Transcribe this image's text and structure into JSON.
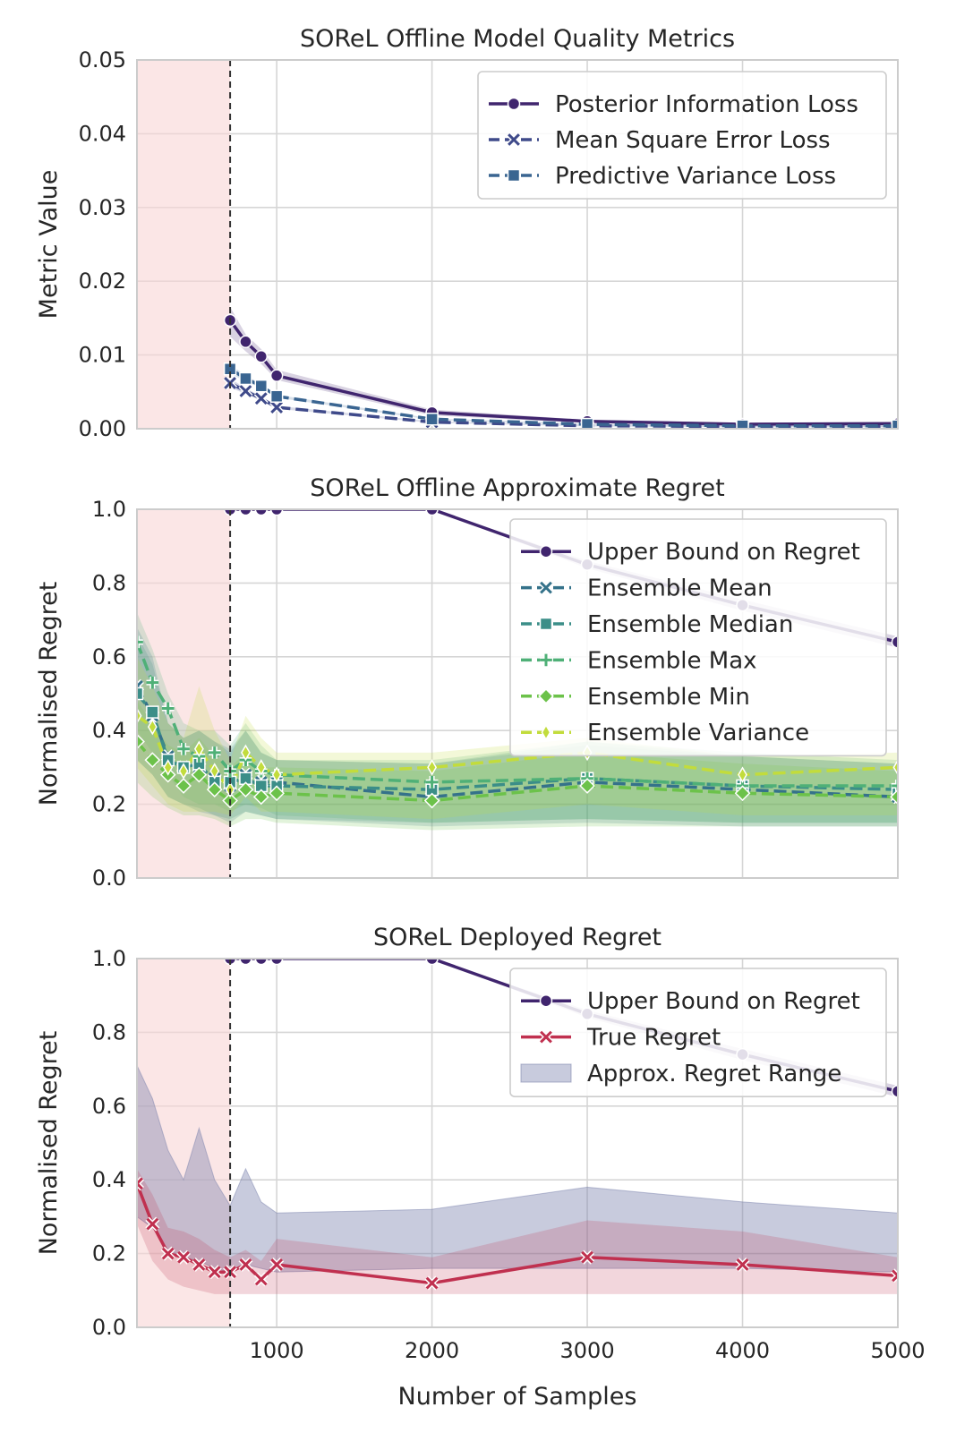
{
  "chart_data": [
    {
      "type": "line",
      "title": "SOReL Offline Model Quality Metrics",
      "xlabel": "",
      "ylabel": "Metric Value",
      "xlim": [
        100,
        5000
      ],
      "ylim": [
        0,
        0.05
      ],
      "yticks": [
        0.0,
        0.01,
        0.02,
        0.03,
        0.04,
        0.05
      ],
      "ytick_labels": [
        "0.00",
        "0.01",
        "0.02",
        "0.03",
        "0.04",
        "0.05"
      ],
      "xticks": [
        1000,
        2000,
        3000,
        4000,
        5000
      ],
      "xtick_labels": [],
      "shaded_region": [
        100,
        700
      ],
      "vline": 700,
      "legend_position": "top-right",
      "series": [
        {
          "name": "Posterior Information Loss",
          "color": "#40256e",
          "marker": "circle",
          "dash": "solid",
          "x": [
            700,
            800,
            900,
            1000,
            2000,
            3000,
            4000,
            5000
          ],
          "y": [
            0.0147,
            0.0118,
            0.0098,
            0.0072,
            0.0022,
            0.001,
            0.0006,
            0.0007
          ],
          "band_lo": [
            0.0125,
            0.0105,
            0.0088,
            0.0066,
            0.0018,
            0.0008,
            0.0005,
            0.0005
          ],
          "band_hi": [
            0.0165,
            0.0128,
            0.0108,
            0.008,
            0.0026,
            0.0012,
            0.0008,
            0.0009
          ]
        },
        {
          "name": "Mean Square Error Loss",
          "color": "#3f4a8a",
          "marker": "x",
          "dash": "dash",
          "x": [
            700,
            800,
            900,
            1000,
            2000,
            3000,
            4000,
            5000
          ],
          "y": [
            0.0062,
            0.0051,
            0.0041,
            0.0029,
            0.0009,
            0.0004,
            0.0003,
            0.0003
          ],
          "band_lo": [
            0.0056,
            0.0047,
            0.0038,
            0.0027,
            0.0008,
            0.0003,
            0.0002,
            0.0002
          ],
          "band_hi": [
            0.0068,
            0.0055,
            0.0044,
            0.0031,
            0.001,
            0.0005,
            0.0004,
            0.0004
          ]
        },
        {
          "name": "Predictive Variance Loss",
          "color": "#3a6591",
          "marker": "square",
          "dash": "dash",
          "x": [
            700,
            800,
            900,
            1000,
            2000,
            3000,
            4000,
            5000
          ],
          "y": [
            0.0081,
            0.0068,
            0.0058,
            0.0044,
            0.0013,
            0.0006,
            0.0004,
            0.0004
          ],
          "band_lo": [
            0.0075,
            0.0064,
            0.0055,
            0.0042,
            0.0012,
            0.0005,
            0.0003,
            0.0003
          ],
          "band_hi": [
            0.0087,
            0.0072,
            0.0061,
            0.0046,
            0.0014,
            0.0007,
            0.0005,
            0.0005
          ]
        }
      ]
    },
    {
      "type": "line",
      "title": "SOReL Offline Approximate Regret",
      "xlabel": "",
      "ylabel": "Normalised Regret",
      "xlim": [
        100,
        5000
      ],
      "ylim": [
        0,
        1
      ],
      "yticks": [
        0.0,
        0.2,
        0.4,
        0.6,
        0.8,
        1.0
      ],
      "ytick_labels": [
        "0.0",
        "0.2",
        "0.4",
        "0.6",
        "0.8",
        "1.0"
      ],
      "xticks": [
        1000,
        2000,
        3000,
        4000,
        5000
      ],
      "xtick_labels": [],
      "shaded_region": [
        100,
        700
      ],
      "vline": 700,
      "legend_position": "top-right",
      "series": [
        {
          "name": "Upper Bound on Regret",
          "color": "#40256e",
          "marker": "circle",
          "dash": "solid",
          "x": [
            700,
            800,
            900,
            1000,
            2000,
            3000,
            4000,
            5000
          ],
          "y": [
            1.0,
            1.0,
            1.0,
            1.0,
            1.0,
            0.85,
            0.74,
            0.64
          ],
          "band_lo": [
            1.0,
            1.0,
            1.0,
            1.0,
            1.0,
            0.84,
            0.725,
            0.625
          ],
          "band_hi": [
            1.0,
            1.0,
            1.0,
            1.0,
            1.0,
            0.86,
            0.755,
            0.655
          ]
        },
        {
          "name": "Ensemble Mean",
          "color": "#35728a",
          "marker": "x",
          "dash": "dash",
          "x": [
            100,
            200,
            300,
            400,
            500,
            600,
            700,
            800,
            900,
            1000,
            2000,
            3000,
            4000,
            5000
          ],
          "y": [
            0.52,
            0.44,
            0.33,
            0.3,
            0.3,
            0.27,
            0.25,
            0.28,
            0.26,
            0.26,
            0.22,
            0.26,
            0.24,
            0.22
          ],
          "band_lo": [
            0.32,
            0.28,
            0.22,
            0.2,
            0.18,
            0.17,
            0.15,
            0.18,
            0.17,
            0.16,
            0.14,
            0.15,
            0.14,
            0.14
          ],
          "band_hi": [
            0.68,
            0.6,
            0.42,
            0.38,
            0.4,
            0.37,
            0.34,
            0.4,
            0.34,
            0.32,
            0.31,
            0.36,
            0.33,
            0.31
          ]
        },
        {
          "name": "Ensemble Median",
          "color": "#3b8e88",
          "marker": "square",
          "dash": "dash",
          "x": [
            100,
            200,
            300,
            400,
            500,
            600,
            700,
            800,
            900,
            1000,
            2000,
            3000,
            4000,
            5000
          ],
          "y": [
            0.5,
            0.45,
            0.32,
            0.3,
            0.31,
            0.26,
            0.26,
            0.27,
            0.25,
            0.25,
            0.24,
            0.27,
            0.25,
            0.24
          ],
          "band_lo": [
            0.32,
            0.28,
            0.22,
            0.2,
            0.19,
            0.17,
            0.16,
            0.18,
            0.17,
            0.16,
            0.15,
            0.16,
            0.15,
            0.15
          ],
          "band_hi": [
            0.66,
            0.58,
            0.42,
            0.38,
            0.4,
            0.37,
            0.35,
            0.4,
            0.34,
            0.32,
            0.31,
            0.37,
            0.33,
            0.31
          ]
        },
        {
          "name": "Ensemble Max",
          "color": "#4fb077",
          "marker": "plus",
          "dash": "dash",
          "x": [
            100,
            200,
            300,
            400,
            500,
            600,
            700,
            800,
            900,
            1000,
            2000,
            3000,
            4000,
            5000
          ],
          "y": [
            0.64,
            0.53,
            0.46,
            0.35,
            0.33,
            0.34,
            0.29,
            0.32,
            0.29,
            0.28,
            0.26,
            0.27,
            0.25,
            0.25
          ],
          "band_lo": [
            0.4,
            0.34,
            0.28,
            0.22,
            0.2,
            0.2,
            0.18,
            0.2,
            0.19,
            0.17,
            0.15,
            0.16,
            0.15,
            0.15
          ],
          "band_hi": [
            0.72,
            0.62,
            0.5,
            0.42,
            0.4,
            0.4,
            0.36,
            0.42,
            0.36,
            0.32,
            0.32,
            0.37,
            0.34,
            0.32
          ]
        },
        {
          "name": "Ensemble Min",
          "color": "#6cc24a",
          "marker": "diamond",
          "dash": "dash",
          "x": [
            100,
            200,
            300,
            400,
            500,
            600,
            700,
            800,
            900,
            1000,
            2000,
            3000,
            4000,
            5000
          ],
          "y": [
            0.37,
            0.32,
            0.28,
            0.25,
            0.28,
            0.24,
            0.21,
            0.24,
            0.22,
            0.23,
            0.21,
            0.25,
            0.23,
            0.22
          ],
          "band_lo": [
            0.26,
            0.22,
            0.19,
            0.17,
            0.17,
            0.16,
            0.14,
            0.16,
            0.16,
            0.15,
            0.13,
            0.14,
            0.14,
            0.14
          ],
          "band_hi": [
            0.48,
            0.42,
            0.36,
            0.34,
            0.38,
            0.33,
            0.3,
            0.34,
            0.3,
            0.3,
            0.29,
            0.34,
            0.31,
            0.29
          ]
        },
        {
          "name": "Ensemble Variance",
          "color": "#c2dc3c",
          "marker": "thin_diamond",
          "dash": "dash",
          "x": [
            100,
            200,
            300,
            400,
            500,
            600,
            700,
            800,
            900,
            1000,
            2000,
            3000,
            4000,
            5000
          ],
          "y": [
            0.44,
            0.41,
            0.3,
            0.29,
            0.35,
            0.29,
            0.24,
            0.34,
            0.3,
            0.28,
            0.3,
            0.34,
            0.28,
            0.3
          ],
          "band_lo": [
            0.3,
            0.25,
            0.2,
            0.18,
            0.18,
            0.18,
            0.17,
            0.22,
            0.18,
            0.18,
            0.16,
            0.2,
            0.17,
            0.17
          ],
          "band_hi": [
            0.6,
            0.52,
            0.42,
            0.38,
            0.52,
            0.4,
            0.32,
            0.44,
            0.38,
            0.34,
            0.34,
            0.38,
            0.33,
            0.34
          ]
        }
      ]
    },
    {
      "type": "line",
      "title": "SOReL Deployed Regret",
      "xlabel": "Number of Samples",
      "ylabel": "Normalised Regret",
      "xlim": [
        100,
        5000
      ],
      "ylim": [
        0,
        1
      ],
      "yticks": [
        0.0,
        0.2,
        0.4,
        0.6,
        0.8,
        1.0
      ],
      "ytick_labels": [
        "0.0",
        "0.2",
        "0.4",
        "0.6",
        "0.8",
        "1.0"
      ],
      "xticks": [
        1000,
        2000,
        3000,
        4000,
        5000
      ],
      "xtick_labels": [
        "1000",
        "2000",
        "3000",
        "4000",
        "5000"
      ],
      "shaded_region": [
        100,
        700
      ],
      "vline": 700,
      "legend_position": "top-right",
      "series": [
        {
          "name": "Upper Bound on Regret",
          "color": "#40256e",
          "marker": "circle",
          "dash": "solid",
          "x": [
            700,
            800,
            900,
            1000,
            2000,
            3000,
            4000,
            5000
          ],
          "y": [
            1.0,
            1.0,
            1.0,
            1.0,
            1.0,
            0.85,
            0.74,
            0.64
          ],
          "band_lo": [
            1.0,
            1.0,
            1.0,
            1.0,
            1.0,
            0.84,
            0.725,
            0.625
          ],
          "band_hi": [
            1.0,
            1.0,
            1.0,
            1.0,
            1.0,
            0.86,
            0.755,
            0.655
          ]
        },
        {
          "name": "True Regret",
          "color": "#c0304f",
          "marker": "x",
          "dash": "solid",
          "x": [
            100,
            200,
            300,
            400,
            500,
            600,
            700,
            800,
            900,
            1000,
            2000,
            3000,
            4000,
            5000
          ],
          "y": [
            0.39,
            0.28,
            0.2,
            0.19,
            0.17,
            0.15,
            0.15,
            0.17,
            0.13,
            0.17,
            0.12,
            0.19,
            0.17,
            0.14
          ],
          "band_lo": [
            0.28,
            0.18,
            0.13,
            0.11,
            0.1,
            0.09,
            0.09,
            0.09,
            0.09,
            0.09,
            0.09,
            0.09,
            0.09,
            0.09
          ],
          "band_hi": [
            0.43,
            0.36,
            0.27,
            0.26,
            0.24,
            0.21,
            0.19,
            0.21,
            0.18,
            0.24,
            0.19,
            0.29,
            0.26,
            0.19
          ]
        }
      ],
      "range_band": {
        "name": "Approx. Regret Range",
        "color": "#7c83ad",
        "x": [
          100,
          200,
          300,
          400,
          500,
          600,
          700,
          800,
          900,
          1000,
          2000,
          3000,
          4000,
          5000
        ],
        "lo": [
          0.3,
          0.27,
          0.21,
          0.19,
          0.18,
          0.16,
          0.15,
          0.17,
          0.16,
          0.15,
          0.16,
          0.16,
          0.16,
          0.15
        ],
        "hi": [
          0.71,
          0.62,
          0.48,
          0.4,
          0.54,
          0.4,
          0.33,
          0.43,
          0.34,
          0.31,
          0.32,
          0.38,
          0.34,
          0.31
        ]
      }
    }
  ]
}
